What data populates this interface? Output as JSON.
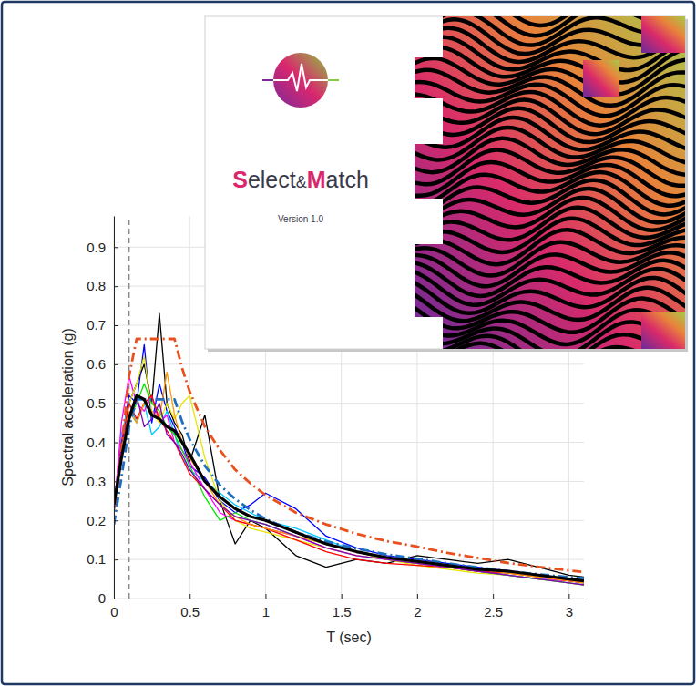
{
  "chart_data": {
    "type": "line",
    "x_label": "T (sec)",
    "y_label": "Spectral acceleration (g)",
    "x": [
      0,
      0.05,
      0.1,
      0.15,
      0.2,
      0.25,
      0.3,
      0.35,
      0.4,
      0.45,
      0.5,
      0.6,
      0.7,
      0.8,
      0.9,
      1.0,
      1.2,
      1.4,
      1.6,
      1.8,
      2.0,
      2.2,
      2.4,
      2.6,
      2.8,
      3.0,
      3.1
    ],
    "xlim": [
      0,
      3.1
    ],
    "xticks": [
      0,
      0.5,
      1,
      1.5,
      2,
      2.5,
      3
    ],
    "ylim": [
      0,
      0.98
    ],
    "yticks": [
      0,
      0.1,
      0.2,
      0.3,
      0.4,
      0.5,
      0.6,
      0.7,
      0.8,
      0.9
    ],
    "grid": true,
    "vlines": [
      0.1
    ],
    "series": [
      {
        "color": "#000000",
        "line_style": "solid",
        "values": [
          0.23,
          0.38,
          0.5,
          0.55,
          0.6,
          0.5,
          0.73,
          0.5,
          0.45,
          0.42,
          0.35,
          0.47,
          0.25,
          0.14,
          0.2,
          0.18,
          0.11,
          0.08,
          0.1,
          0.09,
          0.11,
          0.1,
          0.09,
          0.1,
          0.08,
          0.06,
          0.055
        ]
      },
      {
        "color": "#0000ff",
        "line_style": "solid",
        "values": [
          0.24,
          0.4,
          0.52,
          0.5,
          0.65,
          0.45,
          0.55,
          0.48,
          0.44,
          0.4,
          0.34,
          0.31,
          0.25,
          0.22,
          0.24,
          0.27,
          0.23,
          0.16,
          0.13,
          0.11,
          0.1,
          0.09,
          0.08,
          0.07,
          0.06,
          0.05,
          0.045
        ]
      },
      {
        "color": "#00c8ff",
        "line_style": "solid",
        "values": [
          0.23,
          0.42,
          0.5,
          0.45,
          0.5,
          0.42,
          0.44,
          0.48,
          0.42,
          0.36,
          0.33,
          0.3,
          0.27,
          0.24,
          0.22,
          0.2,
          0.18,
          0.15,
          0.12,
          0.1,
          0.09,
          0.08,
          0.07,
          0.06,
          0.05,
          0.045,
          0.04
        ]
      },
      {
        "color": "#ff00ff",
        "line_style": "solid",
        "values": [
          0.22,
          0.45,
          0.57,
          0.5,
          0.48,
          0.52,
          0.45,
          0.47,
          0.4,
          0.38,
          0.35,
          0.28,
          0.22,
          0.2,
          0.19,
          0.18,
          0.16,
          0.13,
          0.11,
          0.1,
          0.09,
          0.08,
          0.07,
          0.06,
          0.05,
          0.045,
          0.04
        ]
      },
      {
        "color": "#e6e600",
        "line_style": "solid",
        "values": [
          0.23,
          0.4,
          0.5,
          0.55,
          0.62,
          0.48,
          0.45,
          0.5,
          0.46,
          0.5,
          0.52,
          0.36,
          0.25,
          0.2,
          0.18,
          0.17,
          0.15,
          0.13,
          0.11,
          0.1,
          0.085,
          0.075,
          0.065,
          0.06,
          0.05,
          0.04,
          0.035
        ]
      },
      {
        "color": "#00e600",
        "line_style": "solid",
        "values": [
          0.22,
          0.38,
          0.46,
          0.5,
          0.55,
          0.5,
          0.48,
          0.44,
          0.42,
          0.38,
          0.34,
          0.26,
          0.2,
          0.22,
          0.2,
          0.19,
          0.16,
          0.14,
          0.12,
          0.1,
          0.09,
          0.08,
          0.07,
          0.06,
          0.05,
          0.04,
          0.035
        ]
      },
      {
        "color": "#ff0000",
        "line_style": "solid",
        "values": [
          0.22,
          0.4,
          0.5,
          0.46,
          0.5,
          0.52,
          0.46,
          0.43,
          0.4,
          0.36,
          0.32,
          0.28,
          0.24,
          0.2,
          0.19,
          0.18,
          0.15,
          0.12,
          0.1,
          0.09,
          0.085,
          0.08,
          0.07,
          0.065,
          0.055,
          0.045,
          0.04
        ]
      },
      {
        "color": "#ff9900",
        "line_style": "solid",
        "values": [
          0.23,
          0.38,
          0.48,
          0.45,
          0.5,
          0.48,
          0.46,
          0.58,
          0.47,
          0.4,
          0.36,
          0.3,
          0.24,
          0.21,
          0.19,
          0.18,
          0.16,
          0.14,
          0.12,
          0.1,
          0.09,
          0.08,
          0.075,
          0.065,
          0.055,
          0.045,
          0.04
        ]
      },
      {
        "color": "#8000c0",
        "line_style": "solid",
        "values": [
          0.22,
          0.4,
          0.47,
          0.52,
          0.44,
          0.46,
          0.5,
          0.42,
          0.4,
          0.37,
          0.33,
          0.28,
          0.24,
          0.21,
          0.2,
          0.19,
          0.16,
          0.13,
          0.11,
          0.1,
          0.09,
          0.08,
          0.07,
          0.06,
          0.05,
          0.04,
          0.035
        ]
      },
      {
        "color": "#e8501e",
        "line_style": "dashdot",
        "values": [
          0.19,
          0.38,
          0.57,
          0.665,
          0.665,
          0.665,
          0.665,
          0.665,
          0.665,
          0.59,
          0.53,
          0.44,
          0.38,
          0.33,
          0.295,
          0.265,
          0.22,
          0.19,
          0.166,
          0.147,
          0.133,
          0.117,
          0.104,
          0.091,
          0.081,
          0.072,
          0.068
        ]
      },
      {
        "color": "#1f6fc0",
        "line_style": "dashdot",
        "values": [
          0.19,
          0.31,
          0.44,
          0.51,
          0.51,
          0.51,
          0.51,
          0.51,
          0.51,
          0.453,
          0.408,
          0.34,
          0.29,
          0.255,
          0.227,
          0.204,
          0.17,
          0.146,
          0.128,
          0.113,
          0.102,
          0.09,
          0.08,
          0.07,
          0.062,
          0.055,
          0.052
        ]
      },
      {
        "color": "#000000",
        "line_style": "bold",
        "values": [
          0.24,
          0.36,
          0.46,
          0.52,
          0.51,
          0.47,
          0.46,
          0.44,
          0.43,
          0.4,
          0.37,
          0.3,
          0.26,
          0.23,
          0.21,
          0.2,
          0.17,
          0.14,
          0.12,
          0.105,
          0.095,
          0.085,
          0.075,
          0.07,
          0.06,
          0.05,
          0.045
        ]
      }
    ],
    "inset": {
      "title": "Select&Match",
      "subtitle": "Version 1.0"
    }
  }
}
